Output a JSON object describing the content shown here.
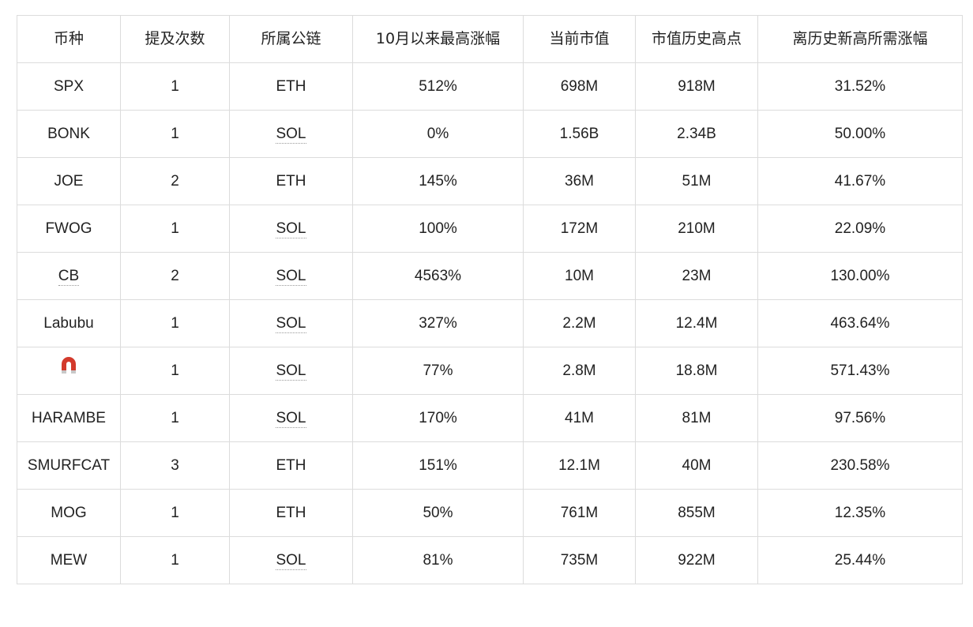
{
  "table": {
    "headers": [
      "币种",
      "提及次数",
      "所属公链",
      "10月以来最高涨幅",
      "当前市值",
      "市值历史高点",
      "离历史新高所需涨幅"
    ],
    "rows": [
      {
        "coin": "SPX",
        "mentions": "1",
        "chain": "ETH",
        "max_gain": "512%",
        "market_cap": "698M",
        "ath_cap": "918M",
        "gain_to_ath": "31.52%"
      },
      {
        "coin": "BONK",
        "mentions": "1",
        "chain": "SOL",
        "max_gain": "0%",
        "market_cap": "1.56B",
        "ath_cap": "2.34B",
        "gain_to_ath": "50.00%"
      },
      {
        "coin": "JOE",
        "mentions": "2",
        "chain": "ETH",
        "max_gain": "145%",
        "market_cap": "36M",
        "ath_cap": "51M",
        "gain_to_ath": "41.67%"
      },
      {
        "coin": "FWOG",
        "mentions": "1",
        "chain": "SOL",
        "max_gain": "100%",
        "market_cap": "172M",
        "ath_cap": "210M",
        "gain_to_ath": "22.09%"
      },
      {
        "coin": "CB",
        "mentions": "2",
        "chain": "SOL",
        "max_gain": "4563%",
        "market_cap": "10M",
        "ath_cap": "23M",
        "gain_to_ath": "130.00%"
      },
      {
        "coin": "Labubu",
        "mentions": "1",
        "chain": "SOL",
        "max_gain": "327%",
        "market_cap": "2.2M",
        "ath_cap": "12.4M",
        "gain_to_ath": "463.64%"
      },
      {
        "coin": "🧲",
        "mentions": "1",
        "chain": "SOL",
        "max_gain": "77%",
        "market_cap": "2.8M",
        "ath_cap": "18.8M",
        "gain_to_ath": "571.43%"
      },
      {
        "coin": "HARAMBE",
        "mentions": "1",
        "chain": "SOL",
        "max_gain": "170%",
        "market_cap": "41M",
        "ath_cap": "81M",
        "gain_to_ath": "97.56%"
      },
      {
        "coin": "SMURFCAT",
        "mentions": "3",
        "chain": "ETH",
        "max_gain": "151%",
        "market_cap": "12.1M",
        "ath_cap": "40M",
        "gain_to_ath": "230.58%"
      },
      {
        "coin": "MOG",
        "mentions": "1",
        "chain": "ETH",
        "max_gain": "50%",
        "market_cap": "761M",
        "ath_cap": "855M",
        "gain_to_ath": "12.35%"
      },
      {
        "coin": "MEW",
        "mentions": "1",
        "chain": "SOL",
        "max_gain": "81%",
        "market_cap": "735M",
        "ath_cap": "922M",
        "gain_to_ath": "25.44%"
      }
    ]
  },
  "icons": {
    "magnet_color": "#d33a2c"
  }
}
